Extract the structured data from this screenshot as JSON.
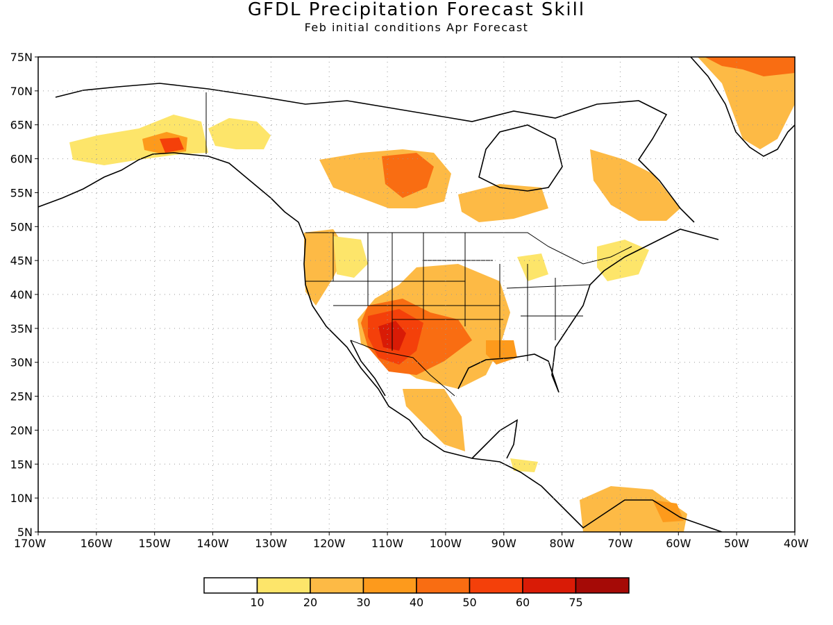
{
  "title": "GFDL Precipitation Forecast Skill",
  "subtitle": "Feb initial conditions  Apr Forecast",
  "map": {
    "lat_labels": [
      "75N",
      "70N",
      "65N",
      "60N",
      "55N",
      "50N",
      "45N",
      "40N",
      "35N",
      "30N",
      "25N",
      "20N",
      "15N",
      "10N",
      "5N"
    ],
    "lon_labels": [
      "170W",
      "160W",
      "150W",
      "140W",
      "130W",
      "120W",
      "110W",
      "100W",
      "90W",
      "80W",
      "70W",
      "60W",
      "50W",
      "40W"
    ]
  },
  "colorbar": {
    "colors": [
      "#ffffff",
      "#fde56a",
      "#fdba45",
      "#fd9a1c",
      "#f96d12",
      "#f4400a",
      "#d91b06",
      "#a50a06"
    ],
    "tick_labels": [
      "10",
      "20",
      "30",
      "40",
      "50",
      "60",
      "75"
    ]
  }
}
